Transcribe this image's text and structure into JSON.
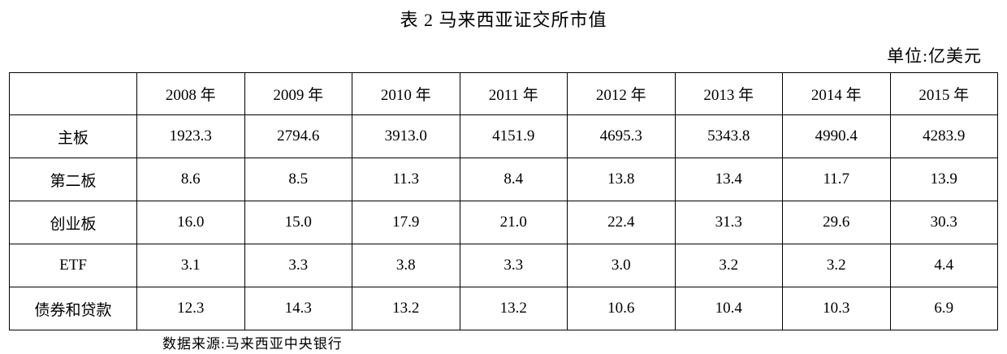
{
  "title": "表 2 马来西亚证交所市值",
  "unit_label": "单位:亿美元",
  "source_note": "数据来源:马来西亚中央银行",
  "colors": {
    "text": "#000000",
    "border": "#000000",
    "background": "#ffffff"
  },
  "chart_data": {
    "type": "table",
    "title": "表 2 马来西亚证交所市值",
    "unit": "亿美元",
    "categories": [
      "2008 年",
      "2009 年",
      "2010 年",
      "2011 年",
      "2012 年",
      "2013 年",
      "2014 年",
      "2015 年"
    ],
    "series": [
      {
        "name": "主板",
        "values": [
          1923.3,
          2794.6,
          3913.0,
          4151.9,
          4695.3,
          5343.8,
          4990.4,
          4283.9
        ]
      },
      {
        "name": "第二板",
        "values": [
          8.6,
          8.5,
          11.3,
          8.4,
          13.8,
          13.4,
          11.7,
          13.9
        ]
      },
      {
        "name": "创业板",
        "values": [
          16.0,
          15.0,
          17.9,
          21.0,
          22.4,
          31.3,
          29.6,
          30.3
        ]
      },
      {
        "name": "ETF",
        "values": [
          3.1,
          3.3,
          3.8,
          3.3,
          3.0,
          3.2,
          3.2,
          4.4
        ]
      },
      {
        "name": "债券和贷款",
        "values": [
          12.3,
          14.3,
          13.2,
          13.2,
          10.6,
          10.4,
          10.3,
          6.9
        ]
      }
    ]
  },
  "table": {
    "corner_label": "",
    "columns": [
      "2008 年",
      "2009 年",
      "2010 年",
      "2011 年",
      "2012 年",
      "2013 年",
      "2014 年",
      "2015 年"
    ],
    "rows": [
      {
        "label": "主板",
        "values": [
          "1923.3",
          "2794.6",
          "3913.0",
          "4151.9",
          "4695.3",
          "5343.8",
          "4990.4",
          "4283.9"
        ]
      },
      {
        "label": "第二板",
        "values": [
          "8.6",
          "8.5",
          "11.3",
          "8.4",
          "13.8",
          "13.4",
          "11.7",
          "13.9"
        ]
      },
      {
        "label": "创业板",
        "values": [
          "16.0",
          "15.0",
          "17.9",
          "21.0",
          "22.4",
          "31.3",
          "29.6",
          "30.3"
        ]
      },
      {
        "label": "ETF",
        "values": [
          "3.1",
          "3.3",
          "3.8",
          "3.3",
          "3.0",
          "3.2",
          "3.2",
          "4.4"
        ]
      },
      {
        "label": "债券和贷款",
        "values": [
          "12.3",
          "14.3",
          "13.2",
          "13.2",
          "10.6",
          "10.4",
          "10.3",
          "6.9"
        ]
      }
    ]
  }
}
